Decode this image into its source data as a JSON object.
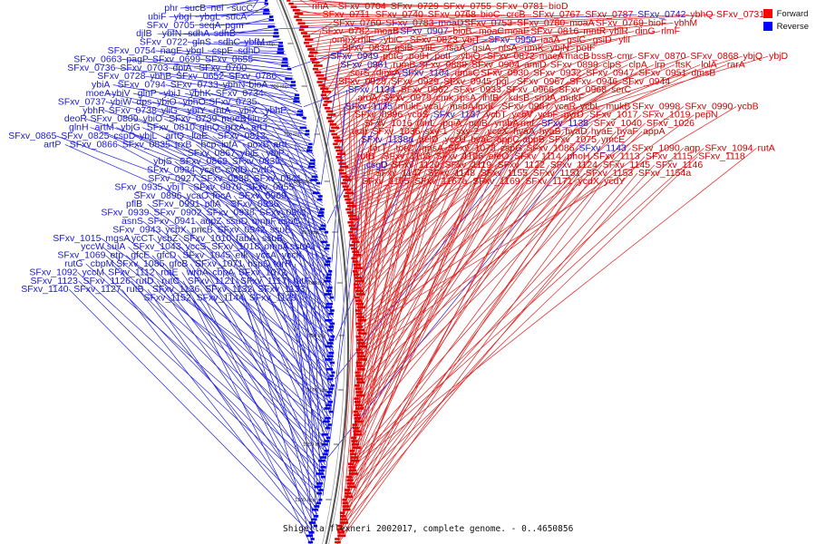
{
  "legend": {
    "forward": {
      "label": "Forward",
      "color": "#ff0000"
    },
    "reverse": {
      "label": "Reverse",
      "color": "#0000ff"
    }
  },
  "caption": "Shigella flexneri 2002017, complete genome. - 0..4650856",
  "scale_ticks": [
    "650 kbp",
    "700 kbp",
    "750 kbp",
    "800 kbp",
    "850 kbp",
    "900 kbp",
    "950 kbp",
    "1000 kbp",
    "1050 kbp",
    "1100 kbp"
  ],
  "genes_forward": [
    "rihA",
    "SFxv_0704",
    "SFxv_0729",
    "SFxv_0755",
    "SFxv_0781",
    "bioD",
    "SFxv_0711",
    "SFxv_0740",
    "SFxv_0768",
    "bioC",
    "crcB",
    "SFxv_0767",
    "SFxv_0787",
    "ybhQ",
    "SFxv_0731",
    "SFxv_0760",
    "SFxv_0783",
    "moaD",
    "SFxv_0753",
    "SFxv_0780",
    "moaA",
    "SFxv_0769",
    "bioF",
    "ybhM",
    "SFxv_0782",
    "moaB",
    "bioB",
    "moaC",
    "moaE",
    "SFxv_0816",
    "mntR",
    "ybiR",
    "dinG",
    "rlmF",
    "ompX",
    "rhlE",
    "ybiC",
    "SFxv_0823",
    "ybiT",
    "iaaA",
    "gsiC",
    "gsiD",
    "yliI",
    "SFxv_0834",
    "gsiB",
    "yliE",
    "fsaA",
    "gsiA",
    "nfsA",
    "rimK",
    "ybjN",
    "potF",
    "potG",
    "potH",
    "potI",
    "ybjO",
    "SFxv_0872",
    "macA",
    "macB",
    "bssR",
    "cmr",
    "SFxv_0870",
    "SFxv_0868",
    "ybjQ",
    "ybjD",
    "rumB",
    "SFxv_0889",
    "SFxv_0904",
    "amiD",
    "SFxv_0899",
    "clpS",
    "clpA",
    "lrp",
    "ftsK",
    "lolA",
    "rarA",
    "serS",
    "dmsA",
    "dmsC",
    "SFxv_0930",
    "SFxv_0932",
    "SFxv_0947",
    "SFxv_0951",
    "dmsB",
    "SFxv_0928",
    "SFxv_0929",
    "SFxv_0945",
    "pgl",
    "SFxv_0967",
    "SFxv_0946",
    "SFxv_0944",
    "SFxv_0962",
    "SFxv_0933",
    "SFxv_0966",
    "SFxv_0968",
    "serC",
    "aroA",
    "SFxv_0979",
    "cmk",
    "rpsA",
    "ihfB",
    "kdsB",
    "smtA",
    "mukF",
    "mukE",
    "ycaL",
    "msbA",
    "lpxK",
    "SFxv_0987",
    "ycaR",
    "ycbL",
    "mukB",
    "SFxv_0998",
    "SFxv_0990",
    "ycbB",
    "SFxv_0996",
    "ycbS",
    "ycbT",
    "ycbV",
    "ycbF",
    "pyrD",
    "SFxv_1017",
    "SFxv_1019",
    "pepN",
    "SFxv_1016",
    "rlmL",
    "pqiA",
    "pqiB",
    "ymbA",
    "rmf",
    "SFxv_1040",
    "SFxv_1026",
    "uup",
    "SFxv_1036",
    "sxy-1",
    "sxy-2",
    "yccX",
    "hyaA",
    "hyaB",
    "hyaD",
    "hyaE",
    "hyaF",
    "appA",
    "helD",
    "yccU",
    "hyaC",
    "appC",
    "appB",
    "SFxv_1075",
    "ymcE",
    "torT",
    "torC",
    "gnsA",
    "SFxv_1073",
    "cspG",
    "SFxv_1086",
    "SFxv_1090",
    "agp",
    "SFxv_1094",
    "rutA",
    "rutB",
    "SFxv_1103",
    "SFxv_1106",
    "efeO",
    "SFxv_1114",
    "phoH",
    "SFxv_1113",
    "SFxv_1115",
    "SFxv_1118",
    "SFxv_1120",
    "SFxv_1119",
    "SFxv_1122",
    "SFxv_1124",
    "SFxv_1145",
    "SFxv_1146",
    "SFxv_1147",
    "SFxv_1148",
    "SFxv_1155",
    "SFxv_1151",
    "SFxv_1153",
    "SFxv_1154a",
    "SFxv_1165",
    "SFxv_1167a",
    "SFxv_1169",
    "SFxv_1171",
    "ycdX",
    "ycdY"
  ],
  "genes_reverse": [
    "SFxv_0742",
    "SFxv_0907",
    "SFxv_0950",
    "SFxv_0949",
    "SFxv_0961",
    "SFxv_1104",
    "SFxv_1134",
    "SFxv_1135",
    "SFxv_1137",
    "SFxv_1138",
    "SFxv_1138a",
    "SFxv_1143",
    "csgD",
    "sucC",
    "nei",
    "sucB",
    "phr",
    "sucA",
    "ybgL",
    "ybgI",
    "ubiF",
    "pgm",
    "seqA",
    "SFxv_0705",
    "sdhB",
    "sdhA",
    "ybfN",
    "djlB",
    "ybfM",
    "sdhC",
    "glnS",
    "SFxv_0722",
    "sdhD",
    "cspE",
    "ybgI",
    "nagE",
    "SFxv_0754",
    "SFxv_0655",
    "SFxv_0699",
    "pagP",
    "SFxv_0663",
    "SFxv_0700",
    "dpiA",
    "SFxv_0703",
    "SFxv_0736",
    "SFxv_0786",
    "SFxv_0652",
    "ybhB",
    "SFxv_0728",
    "bioA",
    "ybhN",
    "SFxv_0733",
    "SFxv_0794",
    "ybiA",
    "SFxv_0734",
    "ybhK",
    "ybiJ",
    "glnP",
    "ybiV",
    "moeA",
    "SFxv_0735",
    "ybhO",
    "ybiO",
    "dps",
    "ybiW",
    "SFxv_0737",
    "ybhP",
    "ybiX",
    "rhtA",
    "ybiY",
    "yliG",
    "SFxv_0738",
    "ybhR",
    "fiiu-2",
    "moeB",
    "SFxv_0739",
    "ybiO",
    "SFxv_0809",
    "deoR",
    "artJ",
    "grxA",
    "glnQ",
    "SFxv_0810",
    "ybjG",
    "artM",
    "glnH",
    "SFxv_0812",
    "ltaE",
    "artQ",
    "ybjL",
    "cspD",
    "SFxv_0825",
    "SFxv_0865",
    "artI",
    "poxB",
    "infA",
    "hcp",
    "trxB",
    "SFxv_0835",
    "SFxv_0866",
    "artP",
    "ybjP",
    "ybjE",
    "SFxv_0867",
    "SFxv_0839",
    "SFxv_0869",
    "ybjS",
    "cvdC",
    "cvdD",
    "ycaC",
    "SFxv_0934",
    "SFxv_0841",
    "SFxv_0888",
    "SFxv_0927",
    "SFxv_0955",
    "SFxv_0970",
    "ybjT",
    "SFxv_0935",
    "SFxv_0969",
    "focA",
    "ycaO",
    "SFxv_0896",
    "SFxv_0936",
    "pflA",
    "SFxv_0991",
    "pflB",
    "SFxv_0901",
    "SFxv_0938",
    "SFxv_0902",
    "SFxv_0939",
    "aspC",
    "ompF",
    "ssuD",
    "aqpZ",
    "SFxv_0941",
    "asnS",
    "ssuE",
    "SFxv_0942",
    "pncB",
    "ycbX",
    "SFxv_0943",
    "ssuB",
    "fabA",
    "SFxv_1010",
    "ycbZ",
    "ycCT",
    "mgsA",
    "SFxv_1015",
    "ssuA",
    "ompA",
    "SFxv_1018",
    "yccS",
    "SFxv_1043",
    "sulA",
    "yccW",
    "yccK",
    "yccA",
    "etk",
    "SFxv_1045",
    "gfcD",
    "gfcE",
    "etp",
    "SFxv_1069",
    "torR",
    "hspQ",
    "SFxv_1071",
    "gfcB",
    "SFxv_1085",
    "cbpM",
    "rutG",
    "SFxv_1072",
    "cbpA",
    "wrbA",
    "rutE",
    "SFxv_1112",
    "yccM",
    "SFxv_1092",
    "rutF",
    "SFxv_1117",
    "SFxv_1121",
    "rutC",
    "rutD",
    "SFxv_1126",
    "SFxv_1123",
    "SFxv_1133",
    "SFxv_1132",
    "SFxv_1136",
    "rutB",
    "SFxv_1127",
    "SFxv_1140",
    "SFxv_1129",
    "SFxv_1144",
    "SFxv_1152"
  ]
}
